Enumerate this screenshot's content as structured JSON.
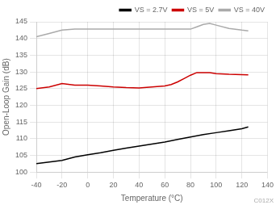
{
  "chart_data": {
    "type": "line",
    "x_label": "Temperature (°C)",
    "y_label": "Open-Loop Gain (dB)",
    "xlim": [
      -40,
      140
    ],
    "ylim": [
      100,
      145
    ],
    "xticks": [
      -40,
      -20,
      0,
      20,
      40,
      60,
      80,
      100,
      120,
      140
    ],
    "yticks": [
      100,
      105,
      110,
      115,
      120,
      125,
      130,
      135,
      140,
      145
    ],
    "grid": true,
    "legend": "upper right",
    "annotations": [
      "C012X"
    ],
    "series": [
      {
        "name": "VS = 2.7V",
        "color": "#000000",
        "x": [
          -40,
          -30,
          -20,
          -10,
          0,
          10,
          20,
          30,
          40,
          50,
          60,
          70,
          80,
          90,
          100,
          110,
          120,
          125
        ],
        "values": [
          102.5,
          103.0,
          103.5,
          104.5,
          105.2,
          105.8,
          106.5,
          107.2,
          107.8,
          108.4,
          109.0,
          109.8,
          110.5,
          111.2,
          111.8,
          112.4,
          113.0,
          113.5
        ]
      },
      {
        "name": "VS = 5V",
        "color": "#cc0000",
        "x": [
          -40,
          -30,
          -20,
          -10,
          0,
          10,
          20,
          30,
          40,
          50,
          60,
          65,
          70,
          75,
          80,
          85,
          90,
          95,
          100,
          110,
          120,
          125
        ],
        "values": [
          125.0,
          125.5,
          126.5,
          126.0,
          126.0,
          125.8,
          125.5,
          125.3,
          125.2,
          125.5,
          125.8,
          126.2,
          127.0,
          128.0,
          129.0,
          129.8,
          129.8,
          129.8,
          129.5,
          129.3,
          129.2,
          129.1
        ]
      },
      {
        "name": "VS = 40V",
        "color": "#aaaaaa",
        "x": [
          -40,
          -30,
          -20,
          -10,
          0,
          10,
          20,
          30,
          40,
          50,
          60,
          70,
          80,
          85,
          90,
          95,
          100,
          110,
          120,
          125
        ],
        "values": [
          140.5,
          141.5,
          142.5,
          142.8,
          142.8,
          142.8,
          142.8,
          142.8,
          142.8,
          142.8,
          142.8,
          142.8,
          142.8,
          143.5,
          144.2,
          144.5,
          144.0,
          143.0,
          142.5,
          142.3
        ]
      }
    ]
  }
}
